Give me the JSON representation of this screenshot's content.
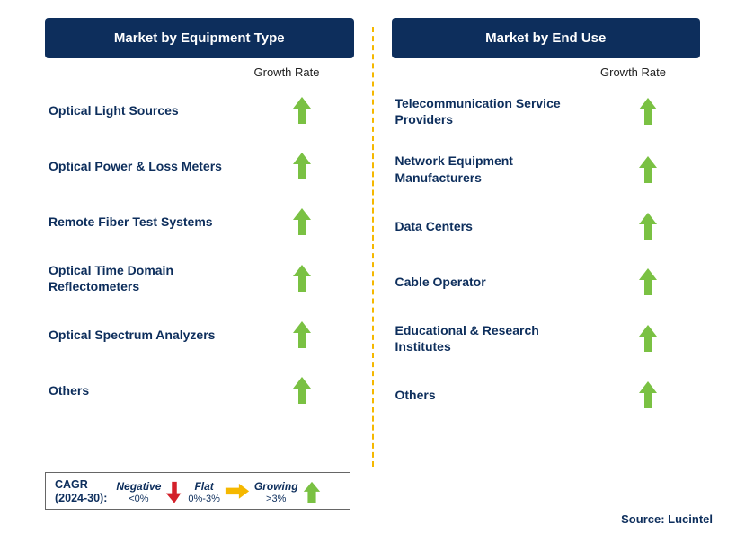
{
  "colors": {
    "header_bg": "#0d2e5c",
    "header_text": "#ffffff",
    "label_text": "#0d2e5c",
    "arrow_green": "#7ac143",
    "arrow_red": "#d3202a",
    "arrow_yellow": "#f5b800",
    "divider": "#f5b800",
    "legend_border": "#666666",
    "growth_label": "#222222"
  },
  "typography": {
    "header_fontsize": 15,
    "item_fontsize": 14,
    "growth_label_fontsize": 13,
    "legend_fontsize": 12,
    "source_fontsize": 13
  },
  "left": {
    "title": "Market by Equipment Type",
    "growth_label": "Growth Rate",
    "items": [
      {
        "label": "Optical Light Sources",
        "growth": "up"
      },
      {
        "label": "Optical Power & Loss Meters",
        "growth": "up"
      },
      {
        "label": "Remote Fiber Test Systems",
        "growth": "up"
      },
      {
        "label": "Optical Time Domain Reflectometers",
        "growth": "up"
      },
      {
        "label": "Optical Spectrum Analyzers",
        "growth": "up"
      },
      {
        "label": "Others",
        "growth": "up"
      }
    ]
  },
  "right": {
    "title": "Market by End Use",
    "growth_label": "Growth Rate",
    "items": [
      {
        "label": "Telecommunication Service Providers",
        "growth": "up"
      },
      {
        "label": "Network Equipment Manufacturers",
        "growth": "up"
      },
      {
        "label": "Data Centers",
        "growth": "up"
      },
      {
        "label": "Cable Operator",
        "growth": "up"
      },
      {
        "label": "Educational & Research Institutes",
        "growth": "up"
      },
      {
        "label": "Others",
        "growth": "up"
      }
    ]
  },
  "legend": {
    "cagr_label_line1": "CAGR",
    "cagr_label_line2": "(2024-30):",
    "negative": {
      "word": "Negative",
      "range": "<0%"
    },
    "flat": {
      "word": "Flat",
      "range": "0%-3%"
    },
    "growing": {
      "word": "Growing",
      "range": ">3%"
    }
  },
  "source": "Source: Lucintel"
}
